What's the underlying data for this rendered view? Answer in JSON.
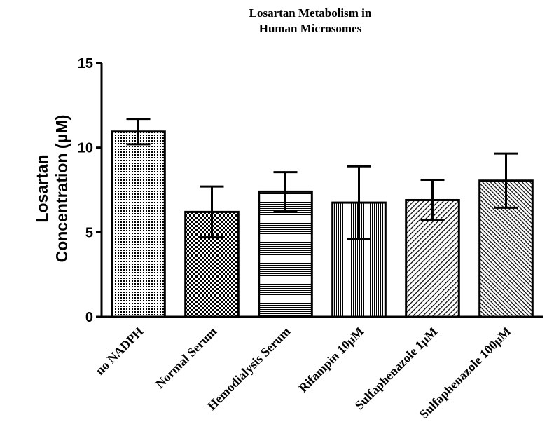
{
  "chart_data": {
    "type": "bar",
    "title_lines": [
      "Losartan Metabolism in",
      "Human Microsomes"
    ],
    "ylabel_lines": [
      "Losartan",
      "Concentration (μM)"
    ],
    "xlabel": "",
    "ylim": [
      0,
      15
    ],
    "yticks": [
      0,
      5,
      10,
      15
    ],
    "ytick_labels": [
      "0",
      "5",
      "10",
      "15"
    ],
    "categories": [
      "no NADPH",
      "Normal Serum",
      "Hemodialysis Serum",
      "Rifampin 10μM",
      "Sulfaphenazole 1μM",
      "Sulfaphenazole 100μM"
    ],
    "values": [
      10.95,
      6.2,
      7.4,
      6.75,
      6.9,
      8.05
    ],
    "error": [
      0.75,
      1.5,
      1.15,
      2.15,
      1.2,
      1.6
    ],
    "patterns": [
      "dots",
      "checker",
      "horizontal",
      "vertical",
      "diagonal",
      "diagonal-dense"
    ],
    "grid": false,
    "legend": "none",
    "colors": {
      "fill": "#ffffff",
      "stroke": "#000000"
    }
  }
}
